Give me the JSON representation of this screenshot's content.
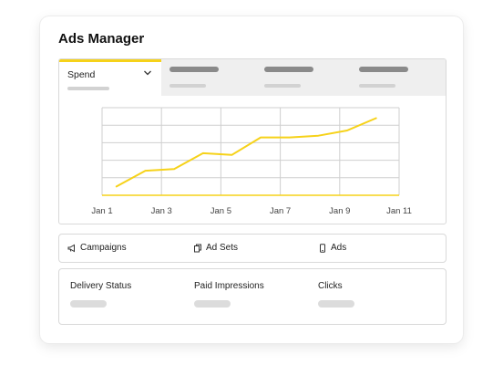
{
  "app": {
    "title": "Ads Manager"
  },
  "tabs": [
    {
      "label": "Spend",
      "active": true,
      "icon": "chevron-down-icon"
    },
    {
      "label": "",
      "active": false
    },
    {
      "label": "",
      "active": false
    },
    {
      "label": "",
      "active": false
    }
  ],
  "chart_data": {
    "type": "line",
    "categories": [
      "Jan 1",
      "Jan 3",
      "Jan 5",
      "Jan 7",
      "Jan 9",
      "Jan 11"
    ],
    "x": [
      1,
      2,
      3,
      4,
      5,
      6,
      7,
      8,
      9,
      10
    ],
    "series": [
      {
        "values": [
          0.5,
          1.4,
          1.5,
          2.4,
          2.3,
          3.3,
          3.3,
          3.4,
          3.7,
          4.4
        ]
      }
    ],
    "ylim": [
      0,
      5
    ],
    "grid": true,
    "line_color": "#f6d21a"
  },
  "levels": [
    {
      "label": "Campaigns",
      "icon": "megaphone-icon"
    },
    {
      "label": "Ad Sets",
      "icon": "copy-icon"
    },
    {
      "label": "Ads",
      "icon": "phone-icon"
    }
  ],
  "metrics": [
    {
      "label": "Delivery Status"
    },
    {
      "label": "Paid Impressions"
    },
    {
      "label": "Clicks"
    }
  ],
  "colors": {
    "accent": "#f6d21a",
    "tab_bg": "#efefef",
    "border": "#d9d9d9"
  }
}
